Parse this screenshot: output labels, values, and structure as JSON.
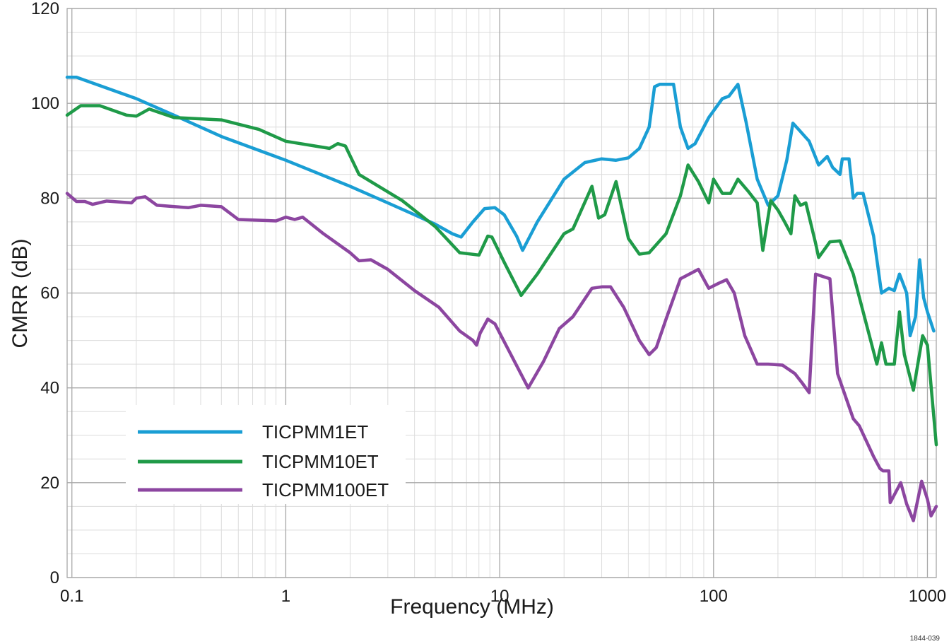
{
  "chart_data": {
    "type": "line",
    "title": "",
    "xlabel": "Frequency (MHz)",
    "ylabel": "CMRR (dB)",
    "x_scale": "log",
    "xlim": [
      0.095,
      1100
    ],
    "ylim": [
      0,
      120
    ],
    "x_ticks": [
      0.1,
      1,
      10,
      100,
      1000
    ],
    "x_tick_labels": [
      "0.1",
      "1",
      "10",
      "100",
      "1000"
    ],
    "y_ticks": [
      0,
      20,
      40,
      60,
      80,
      100,
      120
    ],
    "y_tick_labels": [
      "0",
      "20",
      "40",
      "60",
      "80",
      "100",
      "120"
    ],
    "grid": true,
    "legend_position": "bottom-left",
    "figure_id": "1844-039",
    "series": [
      {
        "name": "TICPMM1ET",
        "color": "#1a9ed4",
        "points": [
          [
            0.095,
            105.5
          ],
          [
            0.105,
            105.5
          ],
          [
            0.2,
            101
          ],
          [
            0.3,
            97.5
          ],
          [
            0.5,
            93
          ],
          [
            1,
            88
          ],
          [
            2,
            82.5
          ],
          [
            3,
            79
          ],
          [
            4,
            76.5
          ],
          [
            5,
            74.5
          ],
          [
            6,
            72.5
          ],
          [
            6.6,
            71.8
          ],
          [
            7.5,
            75
          ],
          [
            8.5,
            77.8
          ],
          [
            9.5,
            78
          ],
          [
            10.5,
            76.5
          ],
          [
            12,
            72
          ],
          [
            12.8,
            69
          ],
          [
            15,
            75
          ],
          [
            20,
            84
          ],
          [
            25,
            87.5
          ],
          [
            30,
            88.3
          ],
          [
            35,
            88
          ],
          [
            40,
            88.5
          ],
          [
            45,
            90.5
          ],
          [
            50,
            95
          ],
          [
            53,
            103.5
          ],
          [
            56,
            104
          ],
          [
            65,
            104
          ],
          [
            70,
            95
          ],
          [
            76,
            90.5
          ],
          [
            82,
            91.5
          ],
          [
            95,
            97
          ],
          [
            110,
            101
          ],
          [
            118,
            101.5
          ],
          [
            130,
            104
          ],
          [
            142,
            96
          ],
          [
            160,
            84
          ],
          [
            180,
            78.5
          ],
          [
            200,
            80.5
          ],
          [
            220,
            88
          ],
          [
            235,
            95.8
          ],
          [
            250,
            94.5
          ],
          [
            280,
            92
          ],
          [
            310,
            87
          ],
          [
            340,
            88.8
          ],
          [
            360,
            86.5
          ],
          [
            390,
            85
          ],
          [
            400,
            88.3
          ],
          [
            430,
            88.3
          ],
          [
            450,
            80
          ],
          [
            470,
            81
          ],
          [
            500,
            81
          ],
          [
            560,
            72
          ],
          [
            610,
            60
          ],
          [
            660,
            61
          ],
          [
            700,
            60.5
          ],
          [
            740,
            64
          ],
          [
            800,
            60
          ],
          [
            830,
            51
          ],
          [
            880,
            55
          ],
          [
            920,
            67
          ],
          [
            960,
            59
          ],
          [
            1000,
            56
          ],
          [
            1070,
            52
          ]
        ]
      },
      {
        "name": "TICPMM10ET",
        "color": "#1f9a48",
        "points": [
          [
            0.095,
            97.5
          ],
          [
            0.11,
            99.5
          ],
          [
            0.135,
            99.5
          ],
          [
            0.18,
            97.5
          ],
          [
            0.2,
            97.3
          ],
          [
            0.23,
            98.8
          ],
          [
            0.3,
            97
          ],
          [
            0.5,
            96.5
          ],
          [
            0.75,
            94.5
          ],
          [
            1,
            92
          ],
          [
            1.6,
            90.5
          ],
          [
            1.75,
            91.5
          ],
          [
            1.9,
            91
          ],
          [
            2.2,
            85
          ],
          [
            2.5,
            83.5
          ],
          [
            3.5,
            79.5
          ],
          [
            5,
            74
          ],
          [
            6.5,
            68.5
          ],
          [
            8,
            68
          ],
          [
            8.8,
            72
          ],
          [
            9.2,
            71.8
          ],
          [
            10.5,
            66.5
          ],
          [
            12.6,
            59.5
          ],
          [
            15,
            64
          ],
          [
            20,
            72.5
          ],
          [
            22,
            73.5
          ],
          [
            27,
            82.5
          ],
          [
            29,
            75.8
          ],
          [
            31,
            76.5
          ],
          [
            35,
            83.5
          ],
          [
            40,
            71.5
          ],
          [
            45,
            68.2
          ],
          [
            50,
            68.5
          ],
          [
            60,
            72.5
          ],
          [
            70,
            80.5
          ],
          [
            76,
            87
          ],
          [
            85,
            83.5
          ],
          [
            95,
            79
          ],
          [
            100,
            84
          ],
          [
            110,
            81
          ],
          [
            120,
            81
          ],
          [
            130,
            84
          ],
          [
            145,
            81.5
          ],
          [
            160,
            79
          ],
          [
            170,
            69
          ],
          [
            185,
            79.5
          ],
          [
            200,
            77.5
          ],
          [
            215,
            75
          ],
          [
            230,
            72.5
          ],
          [
            240,
            80.5
          ],
          [
            255,
            78.5
          ],
          [
            270,
            79
          ],
          [
            300,
            70.5
          ],
          [
            310,
            67.5
          ],
          [
            350,
            70.8
          ],
          [
            390,
            71
          ],
          [
            450,
            64
          ],
          [
            580,
            45
          ],
          [
            610,
            49.5
          ],
          [
            640,
            45
          ],
          [
            700,
            45
          ],
          [
            740,
            56
          ],
          [
            780,
            47
          ],
          [
            860,
            39.5
          ],
          [
            950,
            51
          ],
          [
            1000,
            49
          ],
          [
            1100,
            28
          ]
        ]
      },
      {
        "name": "TICPMM100ET",
        "color": "#8c46a0",
        "points": [
          [
            0.095,
            81
          ],
          [
            0.105,
            79.3
          ],
          [
            0.115,
            79.3
          ],
          [
            0.125,
            78.7
          ],
          [
            0.145,
            79.4
          ],
          [
            0.19,
            79
          ],
          [
            0.2,
            80
          ],
          [
            0.22,
            80.3
          ],
          [
            0.25,
            78.5
          ],
          [
            0.35,
            78
          ],
          [
            0.4,
            78.5
          ],
          [
            0.5,
            78.2
          ],
          [
            0.6,
            75.5
          ],
          [
            0.9,
            75.2
          ],
          [
            1,
            76
          ],
          [
            1.1,
            75.5
          ],
          [
            1.2,
            76
          ],
          [
            1.5,
            72.5
          ],
          [
            2,
            68.5
          ],
          [
            2.2,
            66.8
          ],
          [
            2.5,
            67
          ],
          [
            3,
            65
          ],
          [
            4,
            60.5
          ],
          [
            5.2,
            57
          ],
          [
            6.5,
            52
          ],
          [
            7.5,
            50
          ],
          [
            7.8,
            49
          ],
          [
            8.1,
            51.5
          ],
          [
            8.8,
            54.5
          ],
          [
            9.5,
            53.5
          ],
          [
            11,
            48
          ],
          [
            13.6,
            40
          ],
          [
            16,
            45.5
          ],
          [
            19,
            52.5
          ],
          [
            22,
            55
          ],
          [
            27,
            61
          ],
          [
            30,
            61.3
          ],
          [
            33,
            61.3
          ],
          [
            38,
            57
          ],
          [
            45,
            50
          ],
          [
            50,
            47
          ],
          [
            54,
            48.5
          ],
          [
            60,
            54.5
          ],
          [
            70,
            63
          ],
          [
            85,
            65
          ],
          [
            95,
            61
          ],
          [
            105,
            62
          ],
          [
            115,
            62.8
          ],
          [
            125,
            60
          ],
          [
            140,
            51
          ],
          [
            160,
            45
          ],
          [
            180,
            45
          ],
          [
            210,
            44.8
          ],
          [
            240,
            43
          ],
          [
            260,
            41
          ],
          [
            280,
            39
          ],
          [
            300,
            64
          ],
          [
            350,
            63
          ],
          [
            380,
            43
          ],
          [
            450,
            33.5
          ],
          [
            480,
            32
          ],
          [
            560,
            25.5
          ],
          [
            600,
            23
          ],
          [
            620,
            22.5
          ],
          [
            660,
            22.5
          ],
          [
            670,
            15.8
          ],
          [
            750,
            20
          ],
          [
            800,
            15.5
          ],
          [
            860,
            12
          ],
          [
            940,
            20.3
          ],
          [
            1000,
            16.5
          ],
          [
            1040,
            13
          ],
          [
            1100,
            15
          ]
        ]
      }
    ]
  }
}
